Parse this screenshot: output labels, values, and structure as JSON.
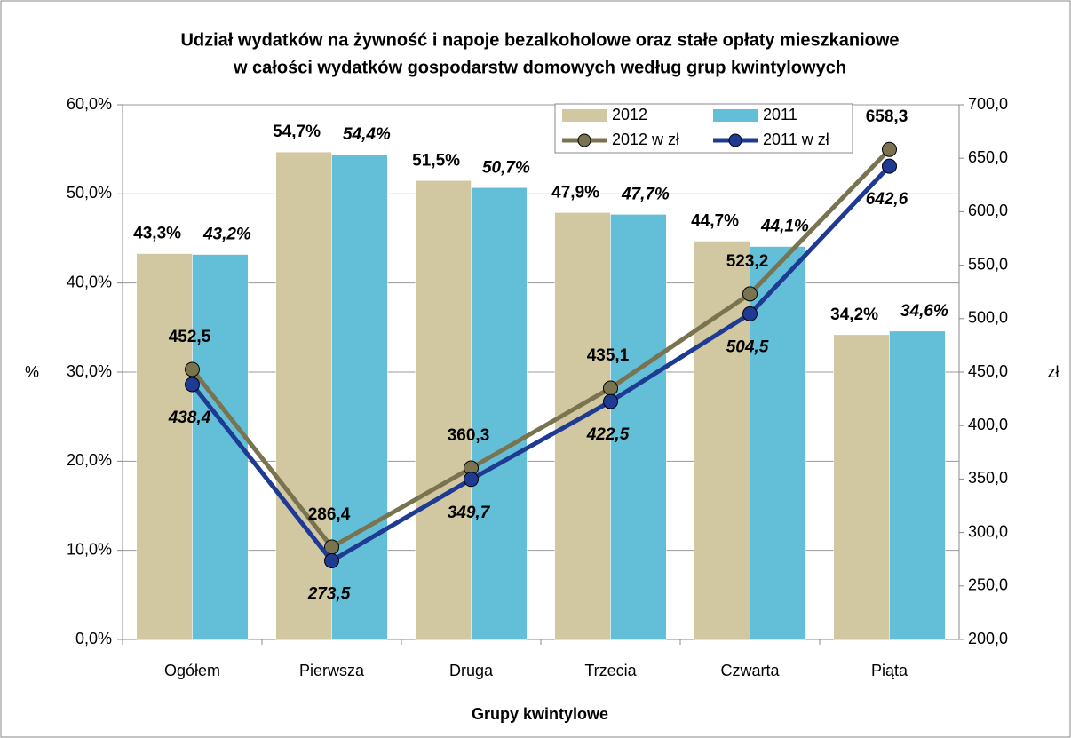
{
  "chart_data": {
    "type": "bar-line",
    "title": [
      "Udział wydatków na żywność i napoje bezalkoholowe oraz stałe opłaty mieszkaniowe",
      "w całości wydatków gospodarstw domowych według grup kwintylowych"
    ],
    "xlabel": "Grupy kwintylowe",
    "ylabel": "%",
    "y2label": "zł",
    "categories": [
      "Ogółem",
      "Pierwsza",
      "Druga",
      "Trzecia",
      "Czwarta",
      "Piąta"
    ],
    "series": [
      {
        "name": "2012",
        "type": "bar",
        "color": "#d1c7a0",
        "values": [
          43.3,
          54.7,
          51.5,
          47.9,
          44.7,
          34.2
        ],
        "value_labels": [
          "43,3%",
          "54,7%",
          "51,5%",
          "47,9%",
          "44,7%",
          "34,2%"
        ]
      },
      {
        "name": "2011",
        "type": "bar",
        "color": "#63bfd8",
        "values": [
          43.2,
          54.4,
          50.7,
          47.7,
          44.1,
          34.6
        ],
        "value_labels": [
          "43,2%",
          "54,4%",
          "50,7%",
          "47,7%",
          "44,1%",
          "34,6%"
        ]
      },
      {
        "name": "2012 w zł",
        "type": "line",
        "axis": "y2",
        "color": "#7a7350",
        "values": [
          452.5,
          286.4,
          360.3,
          435.1,
          523.2,
          658.3
        ],
        "value_labels": [
          "452,5",
          "286,4",
          "360,3",
          "435,1",
          "523,2",
          "658,3"
        ]
      },
      {
        "name": "2011 w zł",
        "type": "line",
        "axis": "y2",
        "color": "#1f3a93",
        "values": [
          438.4,
          273.5,
          349.7,
          422.5,
          504.5,
          642.6
        ],
        "value_labels": [
          "438,4",
          "273,5",
          "349,7",
          "422,5",
          "504,5",
          "642,6"
        ]
      }
    ],
    "ylim": [
      0,
      60
    ],
    "yticks": [
      {
        "value": 0,
        "label": "0,0%"
      },
      {
        "value": 10,
        "label": "10,0%"
      },
      {
        "value": 20,
        "label": "20,0%"
      },
      {
        "value": 30,
        "label": "30,0%"
      },
      {
        "value": 40,
        "label": "40,0%"
      },
      {
        "value": 50,
        "label": "50,0%"
      },
      {
        "value": 60,
        "label": "60,0%"
      }
    ],
    "y2lim": [
      200,
      700
    ],
    "y2ticks": [
      {
        "value": 200,
        "label": "200,0"
      },
      {
        "value": 250,
        "label": "250,0"
      },
      {
        "value": 300,
        "label": "300,0"
      },
      {
        "value": 350,
        "label": "350,0"
      },
      {
        "value": 400,
        "label": "400,0"
      },
      {
        "value": 450,
        "label": "450,0"
      },
      {
        "value": 500,
        "label": "500,0"
      },
      {
        "value": 550,
        "label": "550,0"
      },
      {
        "value": 600,
        "label": "600,0"
      },
      {
        "value": 650,
        "label": "650,0"
      },
      {
        "value": 700,
        "label": "700,0"
      }
    ],
    "grid": true,
    "legend": "top-right"
  }
}
